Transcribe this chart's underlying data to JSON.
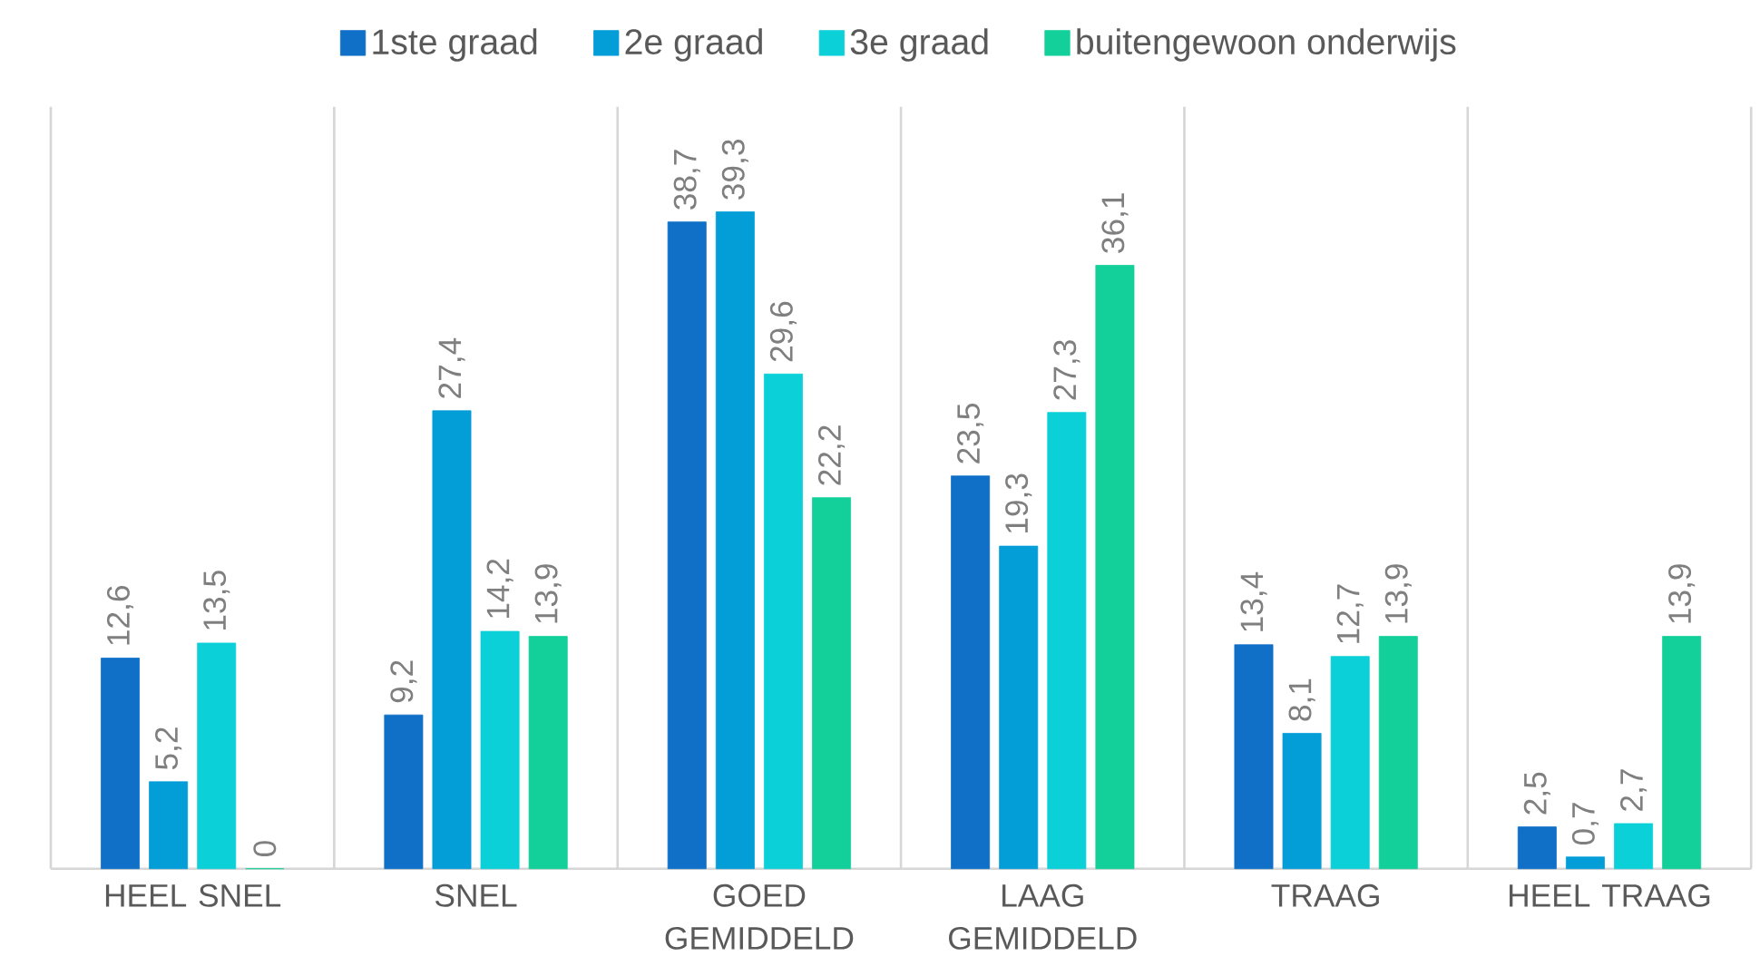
{
  "chart_data": {
    "type": "bar",
    "categories": [
      "HEEL SNEL",
      "SNEL",
      "GOED GEMIDDELD",
      "LAAG GEMIDDELD",
      "TRAAG",
      "HEEL TRAAG"
    ],
    "series": [
      {
        "name": "1ste graad",
        "color": "#1070c8",
        "values": [
          12.6,
          9.2,
          38.7,
          23.5,
          13.4,
          2.5
        ],
        "value_labels": [
          "12,6",
          "9,2",
          "38,7",
          "23,5",
          "13,4",
          "2,5"
        ]
      },
      {
        "name": "2e graad",
        "color": "#039dd8",
        "values": [
          5.2,
          27.4,
          39.3,
          19.3,
          8.1,
          0.7
        ],
        "value_labels": [
          "5,2",
          "27,4",
          "39,3",
          "19,3",
          "8,1",
          "0,7"
        ]
      },
      {
        "name": "3e graad",
        "color": "#0cd0d8",
        "values": [
          13.5,
          14.2,
          29.6,
          27.3,
          12.7,
          2.7
        ],
        "value_labels": [
          "13,5",
          "14,2",
          "29,6",
          "27,3",
          "12,7",
          "2,7"
        ]
      },
      {
        "name": "buitengewoon onderwijs",
        "color": "#13d09a",
        "values": [
          0,
          13.9,
          22.2,
          36.1,
          13.9,
          13.9
        ],
        "value_labels": [
          "0",
          "13,9",
          "22,2",
          "36,1",
          "13,9",
          "13,9"
        ]
      }
    ],
    "grid": "x",
    "legend": "top"
  }
}
